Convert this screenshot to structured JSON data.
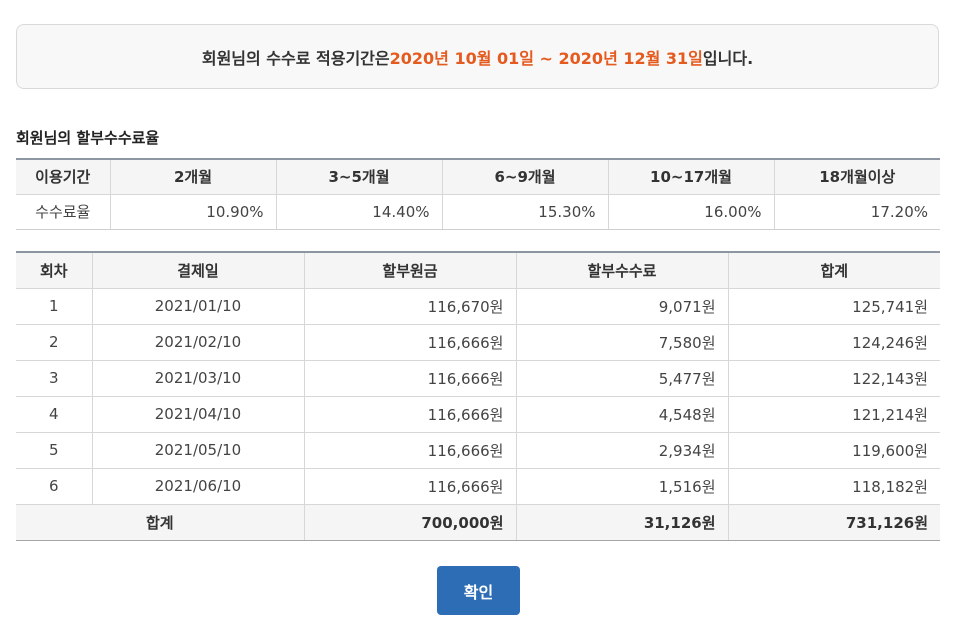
{
  "notice": {
    "prefix": "회원님의 수수료 적용기간은 ",
    "period": "2020년 10월 01일 ~ 2020년 12월 31일",
    "suffix": "입니다.",
    "highlight_color": "#e55a1e"
  },
  "rate_section": {
    "title": "회원님의 할부수수료율",
    "row_header_label": "이용기간",
    "row_label": "수수료율",
    "columns": [
      {
        "label": "2개월",
        "rate": "10.90%"
      },
      {
        "label": "3~5개월",
        "rate": "14.40%"
      },
      {
        "label": "6~9개월",
        "rate": "15.30%"
      },
      {
        "label": "10~17개월",
        "rate": "16.00%"
      },
      {
        "label": "18개월이상",
        "rate": "17.20%"
      }
    ]
  },
  "schedule": {
    "headers": [
      "회차",
      "결제일",
      "할부원금",
      "할부수수료",
      "합계"
    ],
    "rows": [
      {
        "no": "1",
        "date": "2021/01/10",
        "principal": "116,670원",
        "fee": "9,071원",
        "total": "125,741원"
      },
      {
        "no": "2",
        "date": "2021/02/10",
        "principal": "116,666원",
        "fee": "7,580원",
        "total": "124,246원"
      },
      {
        "no": "3",
        "date": "2021/03/10",
        "principal": "116,666원",
        "fee": "5,477원",
        "total": "122,143원"
      },
      {
        "no": "4",
        "date": "2021/04/10",
        "principal": "116,666원",
        "fee": "4,548원",
        "total": "121,214원"
      },
      {
        "no": "5",
        "date": "2021/05/10",
        "principal": "116,666원",
        "fee": "2,934원",
        "total": "119,600원"
      },
      {
        "no": "6",
        "date": "2021/06/10",
        "principal": "116,666원",
        "fee": "1,516원",
        "total": "118,182원"
      }
    ],
    "footer": {
      "label": "합계",
      "principal": "700,000원",
      "fee": "31,126원",
      "total": "731,126원"
    }
  },
  "confirm_button": {
    "label": "확인",
    "color": "#2d6db5"
  }
}
